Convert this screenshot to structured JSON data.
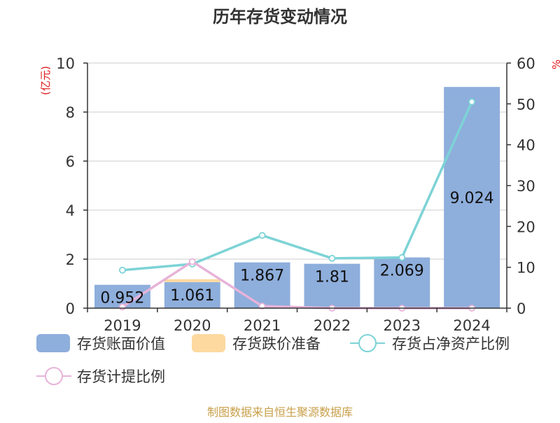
{
  "title": "历年存货变动情况",
  "source": "制图数据来自恒生聚源数据库",
  "left_axis_unit": "(亿元)",
  "right_axis_unit": "%",
  "colors": {
    "bar_book_value": "#8eaedc",
    "bar_provision": "#fdd9a0",
    "line_net_asset_ratio": "#7dd3d6",
    "line_provision_ratio": "#e7b3d9",
    "axis": "#333333",
    "grid": "#cccccc",
    "unit_text": "#e0191b",
    "source_text": "#c8a04a"
  },
  "chart_data": {
    "type": "bar",
    "categories": [
      "2019",
      "2020",
      "2021",
      "2022",
      "2023",
      "2024"
    ],
    "left_axis": {
      "min": 0,
      "max": 10,
      "ticks": [
        0,
        2,
        4,
        6,
        8,
        10
      ]
    },
    "right_axis": {
      "min": 0,
      "max": 60,
      "ticks": [
        0,
        10,
        20,
        30,
        40,
        50,
        60
      ]
    },
    "series": [
      {
        "name": "存货账面价值",
        "kind": "bar",
        "axis": "left",
        "values": [
          0.952,
          1.061,
          1.867,
          1.81,
          2.069,
          9.024
        ],
        "labels": [
          "0.952",
          "1.061",
          "1.867",
          "1.81",
          "2.069",
          "9.024"
        ]
      },
      {
        "name": "存货跌价准备",
        "kind": "bar-stack",
        "axis": "left",
        "values": [
          0.0,
          0.12,
          0.0,
          0.0,
          0.0,
          0.0
        ]
      },
      {
        "name": "存货占净资产比例",
        "kind": "line",
        "axis": "right",
        "values": [
          9.3,
          10.8,
          17.8,
          12.2,
          12.4,
          50.5
        ]
      },
      {
        "name": "存货计提比例",
        "kind": "line",
        "axis": "right",
        "values": [
          0.3,
          11.4,
          0.5,
          0.0,
          0.0,
          0.0
        ]
      }
    ],
    "grid": true,
    "legend_position": "bottom"
  }
}
